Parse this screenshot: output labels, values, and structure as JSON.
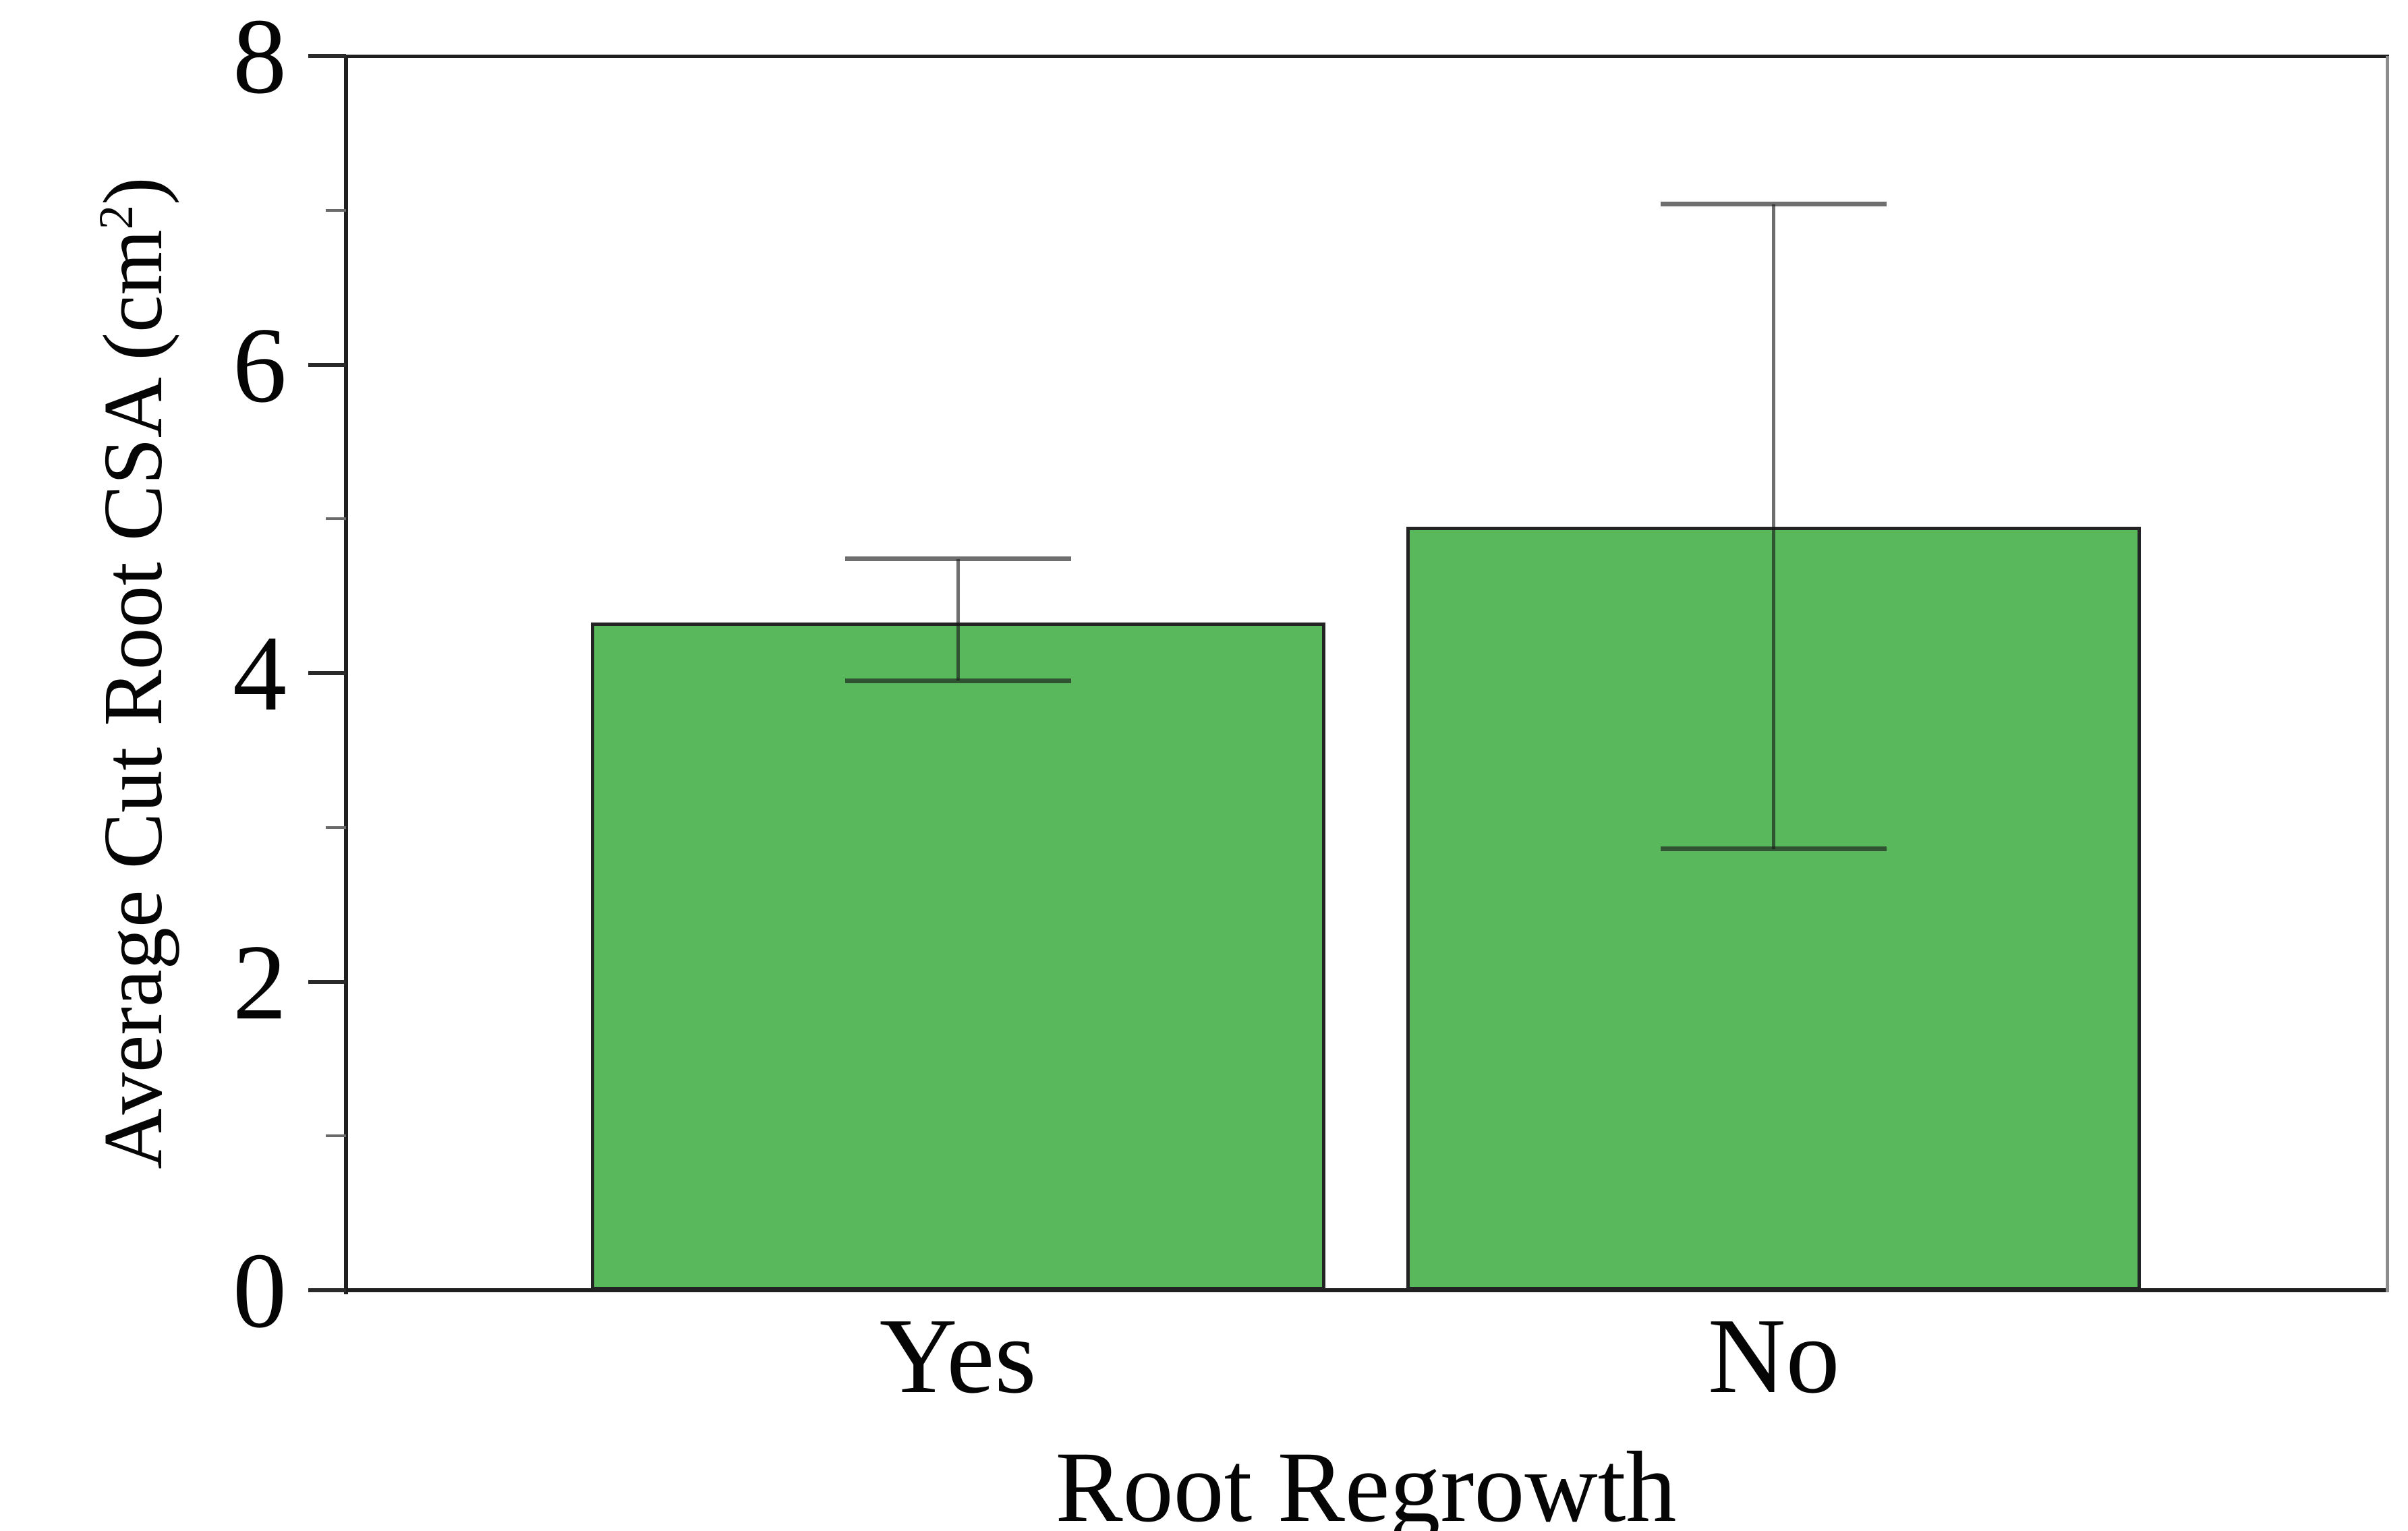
{
  "labels": {
    "xlabel": "Root Regrowth",
    "ylabel_prefix": "Average Cut Root CSA (cm",
    "ylabel_sup": "2",
    "ylabel_suffix": ")"
  },
  "chart_data": {
    "type": "bar",
    "title": "",
    "xlabel": "Root Regrowth",
    "ylabel": "Average Cut Root CSA (cm²)",
    "categories": [
      "Yes",
      "No"
    ],
    "values": [
      4.33,
      4.95
    ],
    "error_low": [
      3.95,
      2.86
    ],
    "error_high": [
      4.74,
      7.04
    ],
    "ylim": [
      0,
      8
    ],
    "yticks_major": [
      0,
      2,
      4,
      6,
      8
    ],
    "yticks_minor": [
      1,
      3,
      5,
      7
    ],
    "grid": false,
    "legend_position": "none",
    "bar_color": "#5ab85c",
    "bar_edge_color": "#232323",
    "error_bar_color": "rgba(22,22,22,0.62)",
    "axis_color": "#1f1f1f",
    "right_spine_color": "#8c8c8c"
  }
}
